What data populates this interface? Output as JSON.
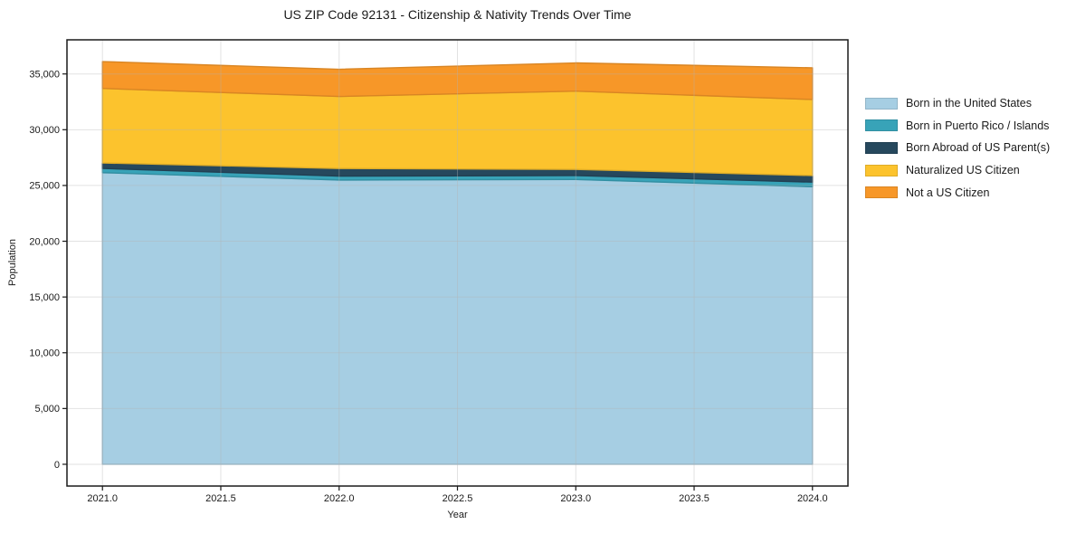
{
  "chart_data": {
    "type": "area",
    "stacked": true,
    "title": "US ZIP Code 92131 - Citizenship & Nativity Trends Over Time",
    "xlabel": "Year",
    "ylabel": "Population",
    "x": [
      2021,
      2022,
      2023,
      2024
    ],
    "series": [
      {
        "name": "Born in the United States",
        "color": "#a6cee3",
        "values": [
          26150,
          25490,
          25540,
          24890
        ]
      },
      {
        "name": "Born in Puerto Rico / Islands",
        "color": "#38a3b8",
        "values": [
          380,
          350,
          350,
          410
        ]
      },
      {
        "name": "Born Abroad of US Parent(s)",
        "color": "#26485d",
        "values": [
          490,
          680,
          550,
          590
        ]
      },
      {
        "name": "Naturalized US Citizen",
        "color": "#fcc32d",
        "values": [
          6680,
          6460,
          7020,
          6820
        ]
      },
      {
        "name": "Not a US Citizen",
        "color": "#f79728",
        "values": [
          2410,
          2440,
          2530,
          2840
        ]
      }
    ],
    "stacked_totals": [
      36110,
      35420,
      35990,
      35550
    ],
    "xlim": [
      2020.85,
      2024.15
    ],
    "ylim": [
      -1950,
      38060
    ],
    "xticks": {
      "values": [
        2021.0,
        2021.5,
        2022.0,
        2022.5,
        2023.0,
        2023.5,
        2024.0
      ],
      "labels": [
        "2021.0",
        "2021.5",
        "2022.0",
        "2022.5",
        "2023.0",
        "2023.5",
        "2024.0"
      ]
    },
    "yticks": {
      "values": [
        0,
        5000,
        10000,
        15000,
        20000,
        25000,
        30000,
        35000
      ],
      "labels": [
        "0",
        "5,000",
        "10,000",
        "15,000",
        "20,000",
        "25,000",
        "30,000",
        "35,000"
      ]
    },
    "grid": true,
    "legend_position": "right",
    "colors": {
      "spine": "#1a1a1a",
      "tick": "#1a1a1a",
      "gridline": "rgba(180,180,180,0.38)"
    }
  }
}
